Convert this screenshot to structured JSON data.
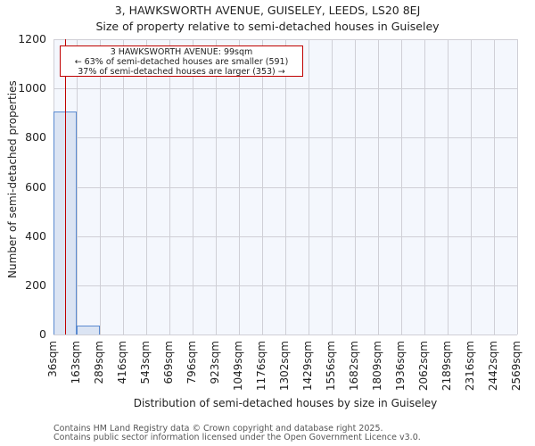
{
  "header": {
    "title": "3, HAWKSWORTH AVENUE, GUISELEY, LEEDS, LS20 8EJ",
    "subtitle": "Size of property relative to semi-detached houses in Guiseley"
  },
  "annotation": {
    "line1": "3 HAWKSWORTH AVENUE: 99sqm",
    "line2": "← 63% of semi-detached houses are smaller (591)",
    "line3": "37% of semi-detached houses are larger (353) →"
  },
  "axes": {
    "ylabel": "Number of semi-detached properties",
    "xlabel": "Distribution of semi-detached houses by size in Guiseley",
    "yticks": [
      "0",
      "200",
      "400",
      "600",
      "800",
      "1000",
      "1200"
    ]
  },
  "footer": {
    "line1": "Contains HM Land Registry data © Crown copyright and database right 2025.",
    "line2": "Contains public sector information licensed under the Open Government Licence v3.0."
  },
  "colors": {
    "bar_fill": "#dbe4f3",
    "bar_edge": "#5a8ad0",
    "marker": "#c00000",
    "plot_bg": "#f4f7fd"
  },
  "chart_data": {
    "type": "bar",
    "title": "3, HAWKSWORTH AVENUE, GUISELEY, LEEDS, LS20 8EJ — Size of property relative to semi-detached houses in Guiseley",
    "xlabel": "Distribution of semi-detached houses by size in Guiseley",
    "ylabel": "Number of semi-detached properties",
    "categories": [
      "36sqm",
      "163sqm",
      "289sqm",
      "416sqm",
      "543sqm",
      "669sqm",
      "796sqm",
      "923sqm",
      "1049sqm",
      "1176sqm",
      "1302sqm",
      "1429sqm",
      "1556sqm",
      "1682sqm",
      "1809sqm",
      "1936sqm",
      "2062sqm",
      "2189sqm",
      "2316sqm",
      "2442sqm",
      "2569sqm"
    ],
    "values": [
      906,
      37,
      0,
      0,
      0,
      0,
      0,
      0,
      0,
      0,
      0,
      0,
      0,
      0,
      0,
      0,
      0,
      0,
      0,
      0
    ],
    "ylim": [
      0,
      1200
    ],
    "grid": true,
    "marker": {
      "x_sqm": 99,
      "label": "3 HAWKSWORTH AVENUE: 99sqm",
      "smaller_pct": 63,
      "smaller_count": 591,
      "larger_pct": 37,
      "larger_count": 353
    }
  }
}
